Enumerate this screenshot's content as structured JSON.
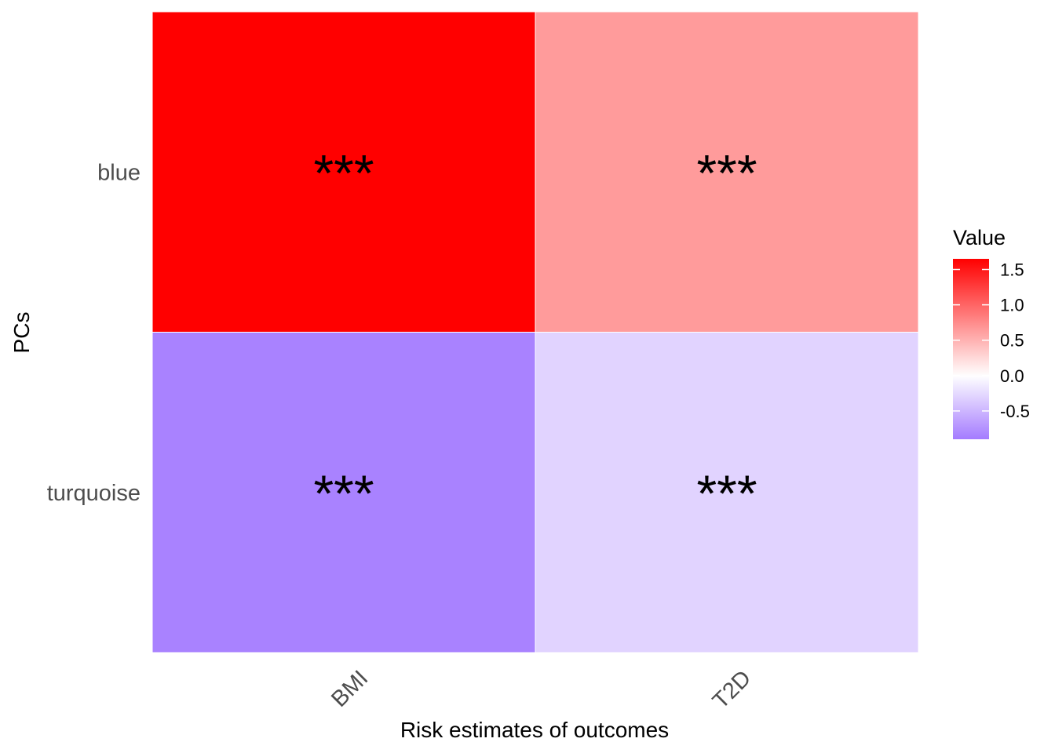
{
  "chart_data": {
    "type": "heatmap",
    "x_categories": [
      "BMI",
      "T2D"
    ],
    "y_categories": [
      "blue",
      "turquoise"
    ],
    "values": [
      [
        1.65,
        0.65
      ],
      [
        -0.85,
        -0.3
      ]
    ],
    "labels": [
      [
        "***",
        "***"
      ],
      [
        "***",
        "***"
      ]
    ],
    "xlabel": "Risk estimates of outcomes",
    "ylabel": "PCs",
    "legend": {
      "title": "Value",
      "position": "right",
      "ticks": [
        1.5,
        1.0,
        0.5,
        0.0,
        -0.5
      ],
      "tick_labels": [
        "1.5",
        "1.0",
        "0.5",
        "0.0",
        "-0.5"
      ],
      "range": [
        -0.9,
        1.65
      ]
    },
    "color_scale": {
      "low": "#a47bff",
      "mid": "#ffffff",
      "high": "#ff0000",
      "midpoint": 0
    }
  }
}
